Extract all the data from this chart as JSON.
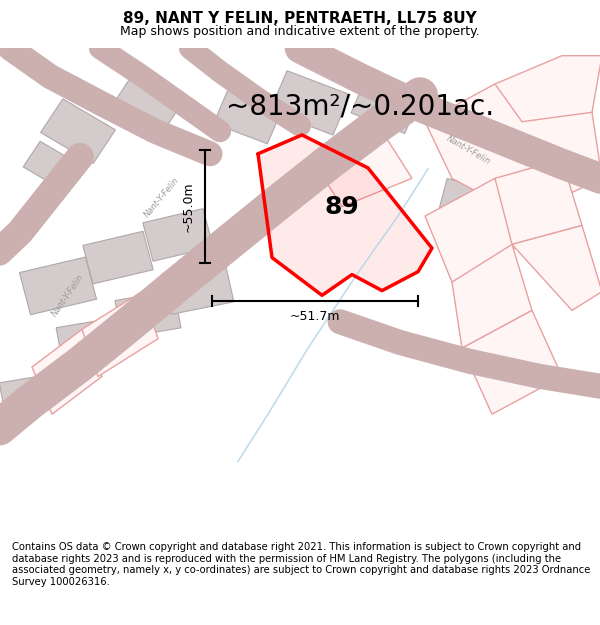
{
  "title": "89, NANT Y FELIN, PENTRAETH, LL75 8UY",
  "subtitle": "Map shows position and indicative extent of the property.",
  "area_text": "~813m²/~0.201ac.",
  "dim_width": "~51.7m",
  "dim_height": "~55.0m",
  "label_89": "89",
  "footer": "Contains OS data © Crown copyright and database right 2021. This information is subject to Crown copyright and database rights 2023 and is reproduced with the permission of HM Land Registry. The polygons (including the associated geometry, namely x, y co-ordinates) are subject to Crown copyright and database rights 2023 Ordnance Survey 100026316.",
  "map_bg": "#ffffff",
  "road_color": "#ccb0b0",
  "building_color": "#d4cccc",
  "building_edge": "#b0a8a8",
  "parcel_face": "#fff5f5",
  "parcel_edge": "#e8a0a0",
  "highlight_color": "#ff0000",
  "dim_color": "#000000",
  "text_color": "#000000",
  "road_label_color": "#999999",
  "stream_color": "#b0d4e8",
  "title_fontsize": 11,
  "subtitle_fontsize": 9,
  "area_fontsize": 20,
  "footer_fontsize": 7.2
}
